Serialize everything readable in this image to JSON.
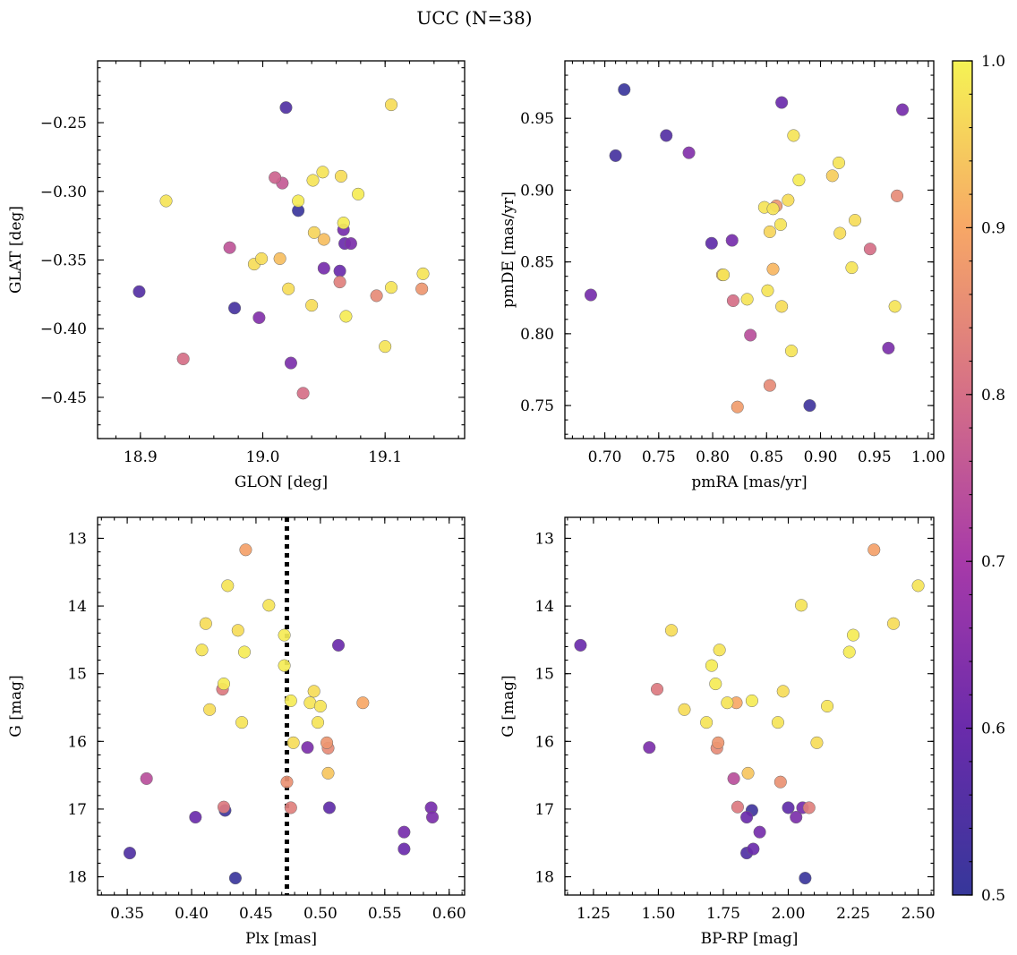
{
  "figure": {
    "title": "UCC (N=38)"
  },
  "colorbar": {
    "min": 0.5,
    "max": 1.0,
    "colormap": "plasma",
    "ticks": [
      0.5,
      0.6,
      0.7,
      0.8,
      0.9,
      1.0
    ],
    "tick_labels": [
      "0.5",
      "0.6",
      "0.7",
      "0.8",
      "0.9",
      "1.0"
    ]
  },
  "chart_data": [
    {
      "type": "scatter",
      "panel": "top-left",
      "xlabel": "GLON [deg]",
      "ylabel": "GLAT [deg]",
      "xlim": [
        18.865,
        19.165
      ],
      "ylim": [
        -0.48,
        -0.205
      ],
      "xticks": [
        18.9,
        19.0,
        19.1
      ],
      "xtick_labels": [
        "18.9",
        "19.0",
        "19.1"
      ],
      "yticks": [
        -0.45,
        -0.4,
        -0.35,
        -0.3,
        -0.25
      ],
      "ytick_labels": [
        "−0.45",
        "−0.40",
        "−0.35",
        "−0.30",
        "−0.25"
      ],
      "points": [
        [
          18.899,
          -0.373,
          0.56
        ],
        [
          18.921,
          -0.307,
          0.98
        ],
        [
          18.935,
          -0.422,
          0.8
        ],
        [
          18.973,
          -0.341,
          0.75
        ],
        [
          18.977,
          -0.385,
          0.53
        ],
        [
          18.993,
          -0.353,
          0.97
        ],
        [
          18.997,
          -0.392,
          0.64
        ],
        [
          18.999,
          -0.349,
          0.97
        ],
        [
          19.01,
          -0.29,
          0.78
        ],
        [
          19.014,
          -0.349,
          0.93
        ],
        [
          19.016,
          -0.294,
          0.76
        ],
        [
          19.019,
          -0.239,
          0.55
        ],
        [
          19.021,
          -0.371,
          0.97
        ],
        [
          19.023,
          -0.425,
          0.63
        ],
        [
          19.029,
          -0.307,
          0.99
        ],
        [
          19.029,
          -0.314,
          0.51
        ],
        [
          19.033,
          -0.447,
          0.8
        ],
        [
          19.04,
          -0.383,
          0.97
        ],
        [
          19.041,
          -0.292,
          0.98
        ],
        [
          19.042,
          -0.33,
          0.96
        ],
        [
          19.049,
          -0.286,
          0.98
        ],
        [
          19.05,
          -0.335,
          0.93
        ],
        [
          19.05,
          -0.356,
          0.62
        ],
        [
          19.063,
          -0.358,
          0.6
        ],
        [
          19.063,
          -0.366,
          0.83
        ],
        [
          19.064,
          -0.289,
          0.97
        ],
        [
          19.066,
          -0.323,
          0.99
        ],
        [
          19.066,
          -0.328,
          0.62
        ],
        [
          19.068,
          -0.391,
          0.99
        ],
        [
          19.067,
          -0.338,
          0.6
        ],
        [
          19.072,
          -0.338,
          0.63
        ],
        [
          19.078,
          -0.302,
          0.99
        ],
        [
          19.093,
          -0.376,
          0.85
        ],
        [
          19.1,
          -0.413,
          0.98
        ],
        [
          19.105,
          -0.237,
          0.97
        ],
        [
          19.105,
          -0.37,
          0.98
        ],
        [
          19.131,
          -0.36,
          0.98
        ],
        [
          19.13,
          -0.371,
          0.87
        ]
      ]
    },
    {
      "type": "scatter",
      "panel": "top-right",
      "xlabel": "pmRA [mas/yr]",
      "ylabel": "pmDE [mas/yr]",
      "xlim": [
        0.663,
        1.005
      ],
      "ylim": [
        0.727,
        0.99
      ],
      "xticks": [
        0.7,
        0.75,
        0.8,
        0.85,
        0.9,
        0.95,
        1.0
      ],
      "xtick_labels": [
        "0.70",
        "0.75",
        "0.80",
        "0.85",
        "0.90",
        "0.95",
        "1.00"
      ],
      "yticks": [
        0.75,
        0.8,
        0.85,
        0.9,
        0.95
      ],
      "ytick_labels": [
        "0.75",
        "0.80",
        "0.85",
        "0.90",
        "0.95"
      ],
      "points": [
        [
          0.687,
          0.827,
          0.62
        ],
        [
          0.71,
          0.924,
          0.53
        ],
        [
          0.718,
          0.97,
          0.51
        ],
        [
          0.757,
          0.938,
          0.56
        ],
        [
          0.778,
          0.926,
          0.64
        ],
        [
          0.799,
          0.863,
          0.58
        ],
        [
          0.809,
          0.841,
          0.93
        ],
        [
          0.81,
          0.841,
          0.98
        ],
        [
          0.818,
          0.865,
          0.62
        ],
        [
          0.819,
          0.823,
          0.8
        ],
        [
          0.823,
          0.749,
          0.88
        ],
        [
          0.832,
          0.824,
          0.98
        ],
        [
          0.835,
          0.799,
          0.74
        ],
        [
          0.848,
          0.888,
          0.98
        ],
        [
          0.851,
          0.83,
          0.98
        ],
        [
          0.853,
          0.871,
          0.96
        ],
        [
          0.853,
          0.764,
          0.85
        ],
        [
          0.856,
          0.887,
          0.98
        ],
        [
          0.856,
          0.845,
          0.92
        ],
        [
          0.859,
          0.889,
          0.87
        ],
        [
          0.863,
          0.876,
          0.98
        ],
        [
          0.864,
          0.961,
          0.6
        ],
        [
          0.864,
          0.819,
          0.97
        ],
        [
          0.87,
          0.893,
          0.97
        ],
        [
          0.873,
          0.788,
          0.98
        ],
        [
          0.875,
          0.938,
          0.98
        ],
        [
          0.88,
          0.907,
          0.99
        ],
        [
          0.89,
          0.75,
          0.52
        ],
        [
          0.911,
          0.91,
          0.95
        ],
        [
          0.917,
          0.919,
          0.98
        ],
        [
          0.918,
          0.87,
          0.97
        ],
        [
          0.929,
          0.846,
          0.98
        ],
        [
          0.932,
          0.879,
          0.97
        ],
        [
          0.946,
          0.859,
          0.8
        ],
        [
          0.963,
          0.79,
          0.63
        ],
        [
          0.969,
          0.819,
          0.98
        ],
        [
          0.971,
          0.896,
          0.85
        ],
        [
          0.976,
          0.956,
          0.62
        ]
      ]
    },
    {
      "type": "scatter",
      "panel": "bottom-left",
      "xlabel": "Plx [mas]",
      "ylabel": "G [mag]",
      "xlim": [
        0.327,
        0.612
      ],
      "ylim": [
        18.27,
        12.69
      ],
      "y_inverted": true,
      "xticks": [
        0.35,
        0.4,
        0.45,
        0.5,
        0.55,
        0.6
      ],
      "xtick_labels": [
        "0.35",
        "0.40",
        "0.45",
        "0.50",
        "0.55",
        "0.60"
      ],
      "yticks": [
        13,
        14,
        15,
        16,
        17,
        18
      ],
      "ytick_labels": [
        "13",
        "14",
        "15",
        "16",
        "17",
        "18"
      ],
      "vline": {
        "x": 0.474,
        "style": "dotted"
      },
      "points": [
        [
          0.352,
          17.65,
          0.55
        ],
        [
          0.365,
          16.55,
          0.74
        ],
        [
          0.403,
          17.12,
          0.6
        ],
        [
          0.408,
          14.65,
          0.98
        ],
        [
          0.411,
          14.26,
          0.97
        ],
        [
          0.414,
          15.53,
          0.97
        ],
        [
          0.424,
          15.23,
          0.82
        ],
        [
          0.425,
          15.15,
          0.99
        ],
        [
          0.425,
          16.97,
          0.82
        ],
        [
          0.426,
          17.02,
          0.52
        ],
        [
          0.428,
          13.7,
          0.98
        ],
        [
          0.434,
          18.02,
          0.51
        ],
        [
          0.436,
          14.36,
          0.97
        ],
        [
          0.439,
          15.72,
          0.98
        ],
        [
          0.441,
          14.68,
          0.99
        ],
        [
          0.442,
          13.17,
          0.89
        ],
        [
          0.46,
          13.99,
          0.98
        ],
        [
          0.472,
          14.43,
          0.99
        ],
        [
          0.472,
          14.88,
          0.99
        ],
        [
          0.474,
          16.6,
          0.86
        ],
        [
          0.477,
          15.4,
          0.99
        ],
        [
          0.477,
          16.98,
          0.83
        ],
        [
          0.479,
          16.02,
          0.97
        ],
        [
          0.49,
          16.09,
          0.63
        ],
        [
          0.492,
          15.43,
          0.98
        ],
        [
          0.495,
          15.26,
          0.97
        ],
        [
          0.498,
          15.72,
          0.98
        ],
        [
          0.5,
          15.48,
          0.98
        ],
        [
          0.505,
          16.02,
          0.87
        ],
        [
          0.506,
          16.1,
          0.85
        ],
        [
          0.506,
          16.47,
          0.94
        ],
        [
          0.507,
          16.98,
          0.58
        ],
        [
          0.514,
          14.58,
          0.6
        ],
        [
          0.533,
          15.43,
          0.9
        ],
        [
          0.565,
          17.34,
          0.62
        ],
        [
          0.565,
          17.59,
          0.6
        ],
        [
          0.586,
          16.98,
          0.62
        ],
        [
          0.587,
          17.12,
          0.63
        ]
      ]
    },
    {
      "type": "scatter",
      "panel": "bottom-right",
      "xlabel": "BP-RP [mag]",
      "ylabel": "G [mag]",
      "xlim": [
        1.14,
        2.56
      ],
      "ylim": [
        18.27,
        12.69
      ],
      "y_inverted": true,
      "xticks": [
        1.25,
        1.5,
        1.75,
        2.0,
        2.25,
        2.5
      ],
      "xtick_labels": [
        "1.25",
        "1.50",
        "1.75",
        "2.00",
        "2.25",
        "2.50"
      ],
      "yticks": [
        13,
        14,
        15,
        16,
        17,
        18
      ],
      "ytick_labels": [
        "13",
        "14",
        "15",
        "16",
        "17",
        "18"
      ],
      "points": [
        [
          1.2,
          14.58,
          0.6
        ],
        [
          1.465,
          16.09,
          0.63
        ],
        [
          1.495,
          15.23,
          0.82
        ],
        [
          1.55,
          14.36,
          0.97
        ],
        [
          1.6,
          15.53,
          0.97
        ],
        [
          1.685,
          15.72,
          0.98
        ],
        [
          1.705,
          14.88,
          0.99
        ],
        [
          1.72,
          15.15,
          0.99
        ],
        [
          1.725,
          16.1,
          0.85
        ],
        [
          1.73,
          16.02,
          0.87
        ],
        [
          1.735,
          14.65,
          0.98
        ],
        [
          1.765,
          15.43,
          0.98
        ],
        [
          1.79,
          16.55,
          0.74
        ],
        [
          1.8,
          15.43,
          0.9
        ],
        [
          1.805,
          16.97,
          0.82
        ],
        [
          1.84,
          17.65,
          0.55
        ],
        [
          1.84,
          17.12,
          0.6
        ],
        [
          1.845,
          16.47,
          0.94
        ],
        [
          1.86,
          17.02,
          0.52
        ],
        [
          1.86,
          15.4,
          0.99
        ],
        [
          1.865,
          17.59,
          0.6
        ],
        [
          1.89,
          17.34,
          0.62
        ],
        [
          1.96,
          15.72,
          0.98
        ],
        [
          1.97,
          16.6,
          0.86
        ],
        [
          1.98,
          15.26,
          0.97
        ],
        [
          2.0,
          16.98,
          0.58
        ],
        [
          2.03,
          17.12,
          0.63
        ],
        [
          2.05,
          13.99,
          0.98
        ],
        [
          2.055,
          16.98,
          0.62
        ],
        [
          2.065,
          18.02,
          0.51
        ],
        [
          2.08,
          16.98,
          0.83
        ],
        [
          2.11,
          16.02,
          0.97
        ],
        [
          2.15,
          15.48,
          0.98
        ],
        [
          2.235,
          14.68,
          0.99
        ],
        [
          2.25,
          14.43,
          0.99
        ],
        [
          2.33,
          13.17,
          0.89
        ],
        [
          2.405,
          14.26,
          0.97
        ],
        [
          2.5,
          13.7,
          0.98
        ]
      ]
    }
  ]
}
